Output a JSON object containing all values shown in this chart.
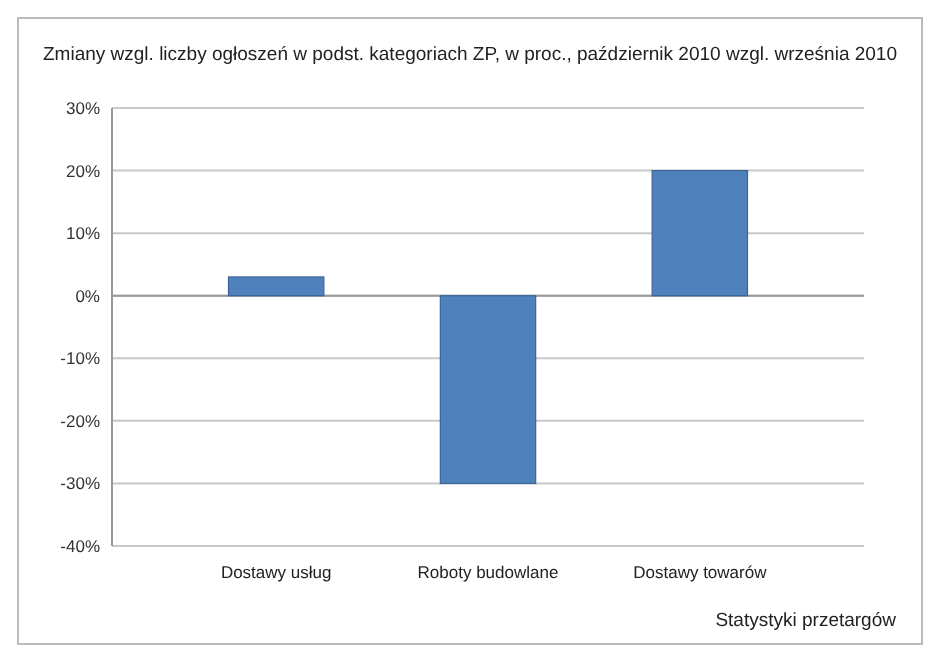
{
  "chart_data": {
    "type": "bar",
    "title": "Zmiany wzgl. liczby ogłoszeń w podst. kategoriach ZP, w proc., październik 2010  wzgl. września 2010",
    "categories": [
      "Dostawy usług",
      "Roboty budowlane",
      "Dostawy towarów"
    ],
    "values": [
      3,
      -30,
      20
    ],
    "color": "#4f81bd",
    "ylim": [
      -40,
      30
    ],
    "yticks": [
      {
        "value": -40,
        "label": "-40%"
      },
      {
        "value": -30,
        "label": "-30%"
      },
      {
        "value": -20,
        "label": "-20%"
      },
      {
        "value": -10,
        "label": "-10%"
      },
      {
        "value": 0,
        "label": "0%"
      },
      {
        "value": 10,
        "label": "10%"
      },
      {
        "value": 20,
        "label": "20%"
      },
      {
        "value": 30,
        "label": "30%"
      }
    ],
    "grid": "y",
    "annotations": [
      "Statystyki przetargów"
    ]
  }
}
